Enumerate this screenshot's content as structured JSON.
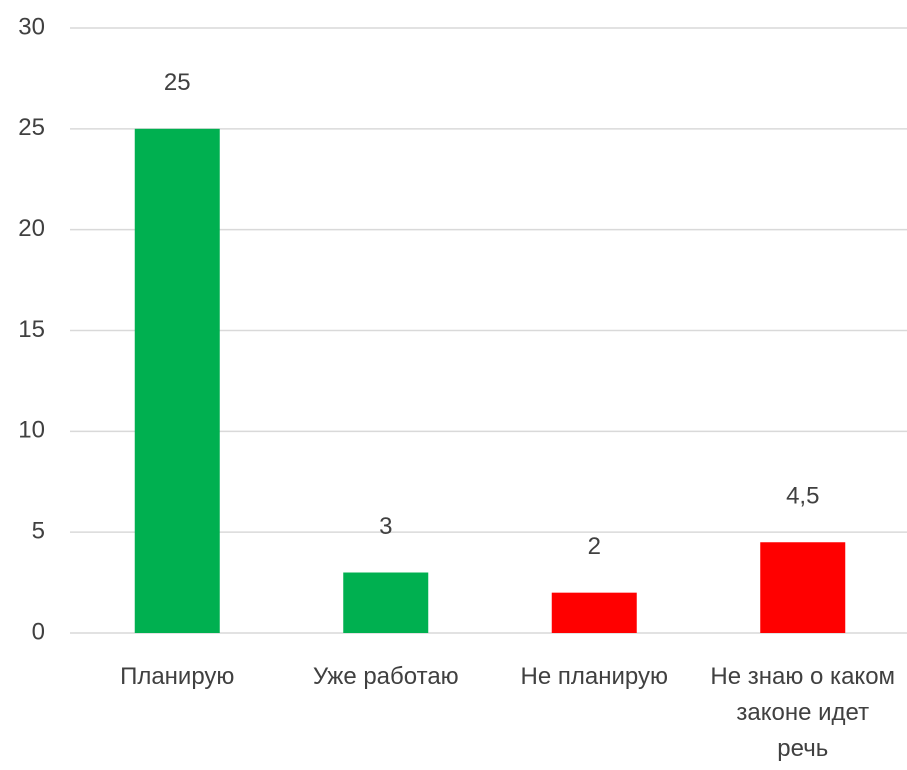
{
  "chart_data": {
    "type": "bar",
    "categories": [
      "Планирую",
      "Уже работаю",
      "Не планирую",
      "Не знаю о каком законе идет речь"
    ],
    "values": [
      25,
      3,
      2,
      4.5
    ],
    "value_labels": [
      "25",
      "3",
      "2",
      "4,5"
    ],
    "colors": [
      "#00b050",
      "#00b050",
      "#ff0000",
      "#ff0000"
    ],
    "ylim": [
      0,
      30
    ],
    "yticks": [
      0,
      5,
      10,
      15,
      20,
      25,
      30
    ],
    "grid": true
  }
}
